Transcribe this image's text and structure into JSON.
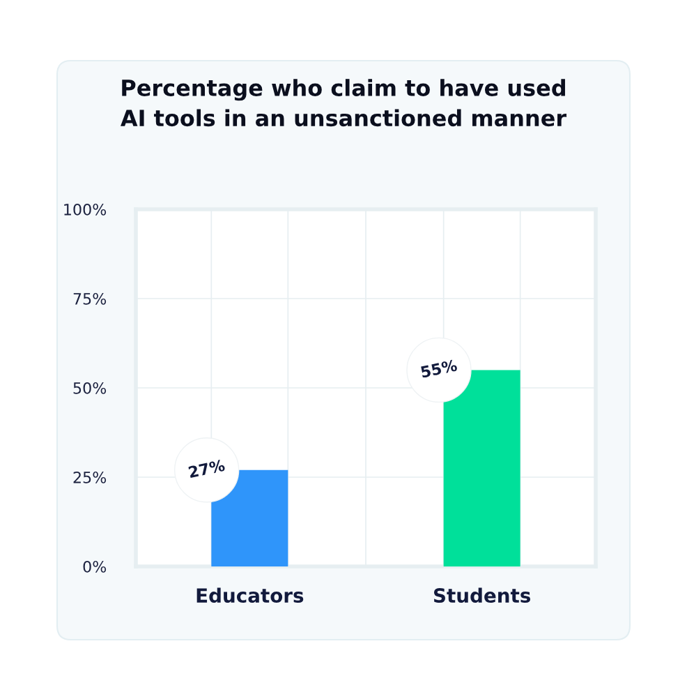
{
  "chart_data": {
    "type": "bar",
    "title": "Percentage who claim to have used\nAI tools in an unsanctioned manner",
    "categories": [
      "Educators",
      "Students"
    ],
    "values": [
      27,
      55
    ],
    "colors": [
      "#2f95fa",
      "#00e09a"
    ],
    "value_labels": [
      "27%",
      "55%"
    ],
    "ylim": [
      0,
      100
    ],
    "yticks": [
      {
        "value": 0,
        "label": "0%"
      },
      {
        "value": 25,
        "label": "25%"
      },
      {
        "value": 50,
        "label": "50%"
      },
      {
        "value": 75,
        "label": "75%"
      },
      {
        "value": 100,
        "label": "100%"
      }
    ],
    "grid": true
  }
}
